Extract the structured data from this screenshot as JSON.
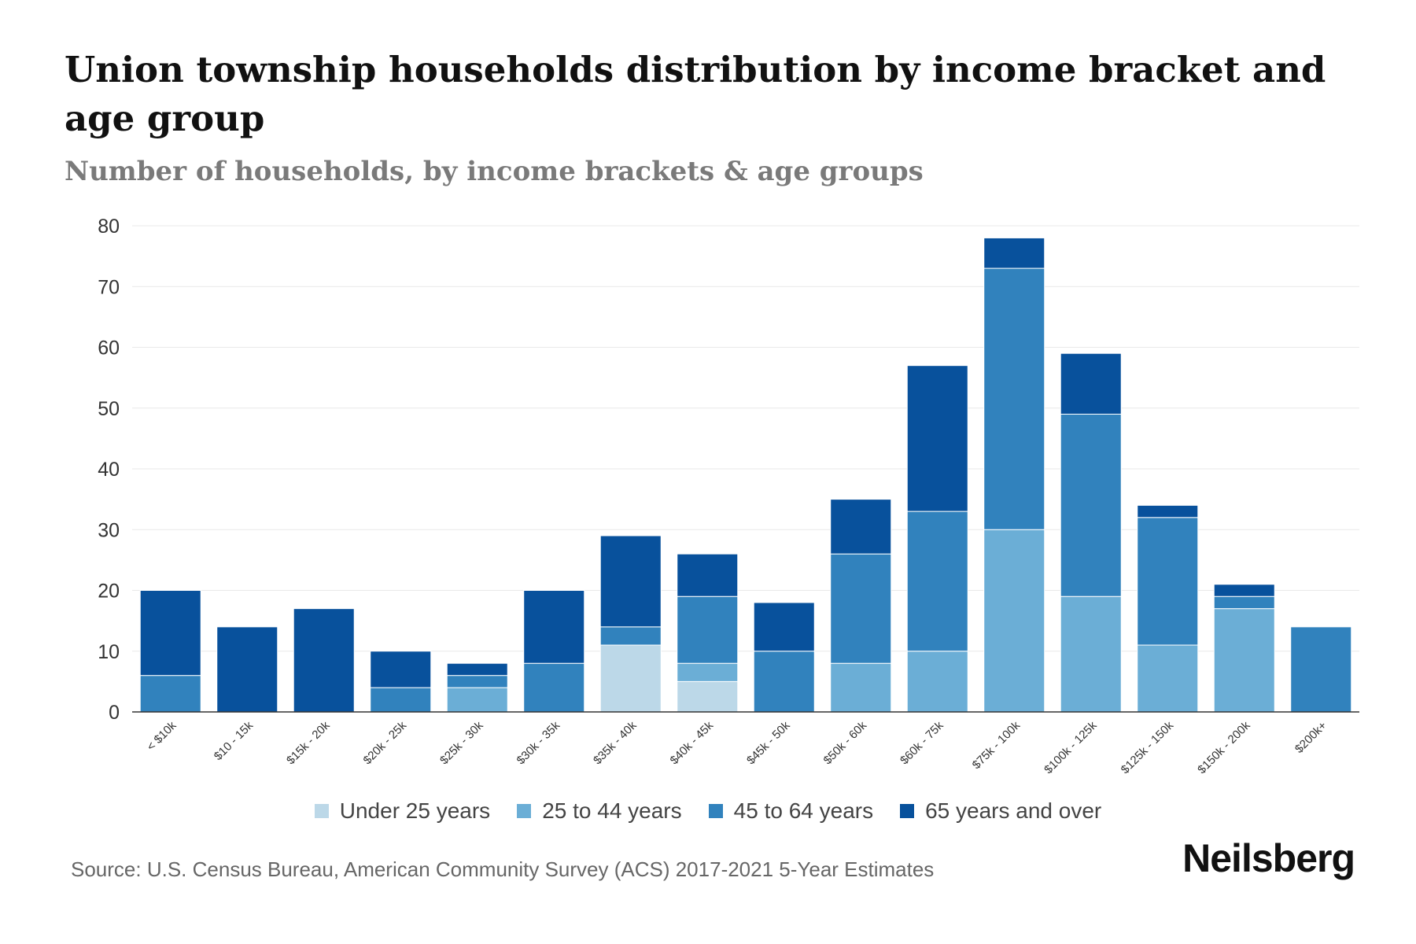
{
  "chart_data": {
    "type": "bar",
    "stacked": true,
    "title": "Union township households distribution by income bracket and age group",
    "subtitle": "Number of households, by income brackets & age groups",
    "xlabel": "",
    "ylabel": "",
    "ylim": [
      0,
      80
    ],
    "yticks": [
      0,
      10,
      20,
      30,
      40,
      50,
      60,
      70,
      80
    ],
    "grid": true,
    "legend_position": "bottom",
    "categories": [
      "< $10k",
      "$10 - 15k",
      "$15k - 20k",
      "$20k - 25k",
      "$25k - 30k",
      "$30k - 35k",
      "$35k - 40k",
      "$40k - 45k",
      "$45k - 50k",
      "$50k - 60k",
      "$60k - 75k",
      "$75k - 100k",
      "$100k - 125k",
      "$125k - 150k",
      "$150k - 200k",
      "$200k+"
    ],
    "series": [
      {
        "name": "Under 25 years",
        "color": "#bcd8e8",
        "values": [
          0,
          0,
          0,
          0,
          0,
          0,
          11,
          5,
          0,
          0,
          0,
          0,
          0,
          0,
          0,
          0
        ]
      },
      {
        "name": "25 to 44 years",
        "color": "#6baed6",
        "values": [
          0,
          0,
          0,
          0,
          4,
          0,
          0,
          3,
          0,
          8,
          10,
          30,
          19,
          11,
          17,
          0
        ]
      },
      {
        "name": "45 to 64 years",
        "color": "#3182bd",
        "values": [
          6,
          0,
          0,
          4,
          2,
          8,
          3,
          11,
          10,
          18,
          23,
          43,
          30,
          21,
          2,
          14
        ]
      },
      {
        "name": "65 years and over",
        "color": "#08519c",
        "values": [
          14,
          14,
          17,
          6,
          2,
          12,
          15,
          7,
          8,
          9,
          24,
          5,
          10,
          2,
          2,
          0
        ]
      }
    ]
  },
  "footer": {
    "source": "Source: U.S. Census Bureau, American Community Survey (ACS) 2017-2021 5-Year Estimates",
    "brand": "Neilsberg"
  }
}
